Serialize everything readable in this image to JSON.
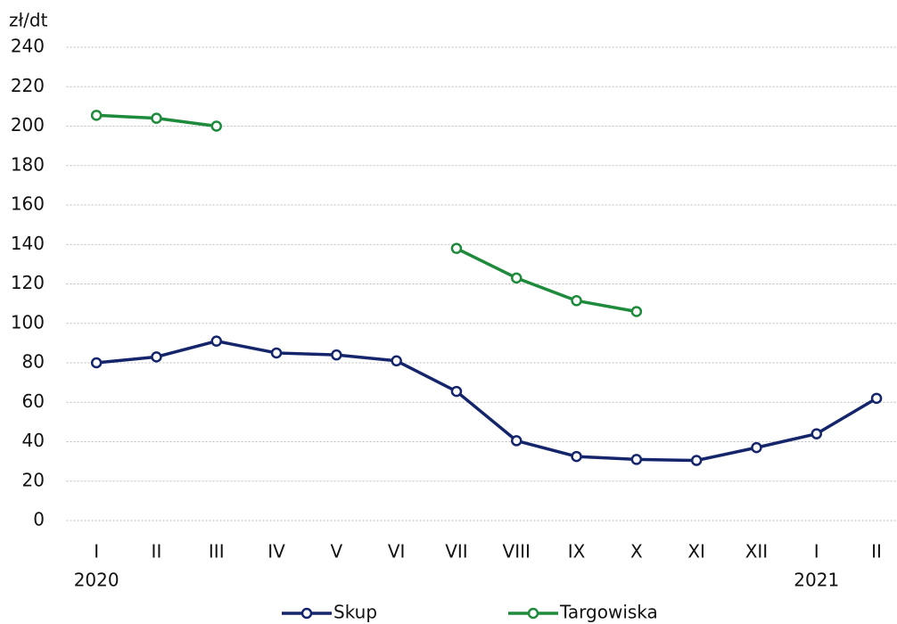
{
  "chart_data": {
    "type": "line",
    "y_unit_label": "zł/dt",
    "categories": [
      "I",
      "II",
      "III",
      "IV",
      "V",
      "VI",
      "VII",
      "VIII",
      "IX",
      "X",
      "XI",
      "XII",
      "I",
      "II"
    ],
    "years": [
      "2020",
      null,
      null,
      null,
      null,
      null,
      null,
      null,
      null,
      null,
      null,
      null,
      "2021",
      null
    ],
    "series": [
      {
        "name": "Skup",
        "color": "#15256b",
        "values": [
          80,
          83,
          91,
          85,
          84,
          81,
          65.5,
          40.5,
          32.5,
          31,
          30.5,
          37,
          44,
          62
        ]
      },
      {
        "name": "Targowiska",
        "color": "#1e8a3c",
        "values": [
          205.5,
          204,
          200,
          null,
          null,
          null,
          138,
          123,
          111.5,
          106,
          null,
          null,
          null,
          null
        ]
      }
    ],
    "ylim": [
      0,
      240
    ],
    "yticks": [
      0,
      20,
      40,
      60,
      80,
      100,
      120,
      140,
      160,
      180,
      200,
      220,
      240
    ],
    "grid": true,
    "legend_position": "bottom"
  }
}
